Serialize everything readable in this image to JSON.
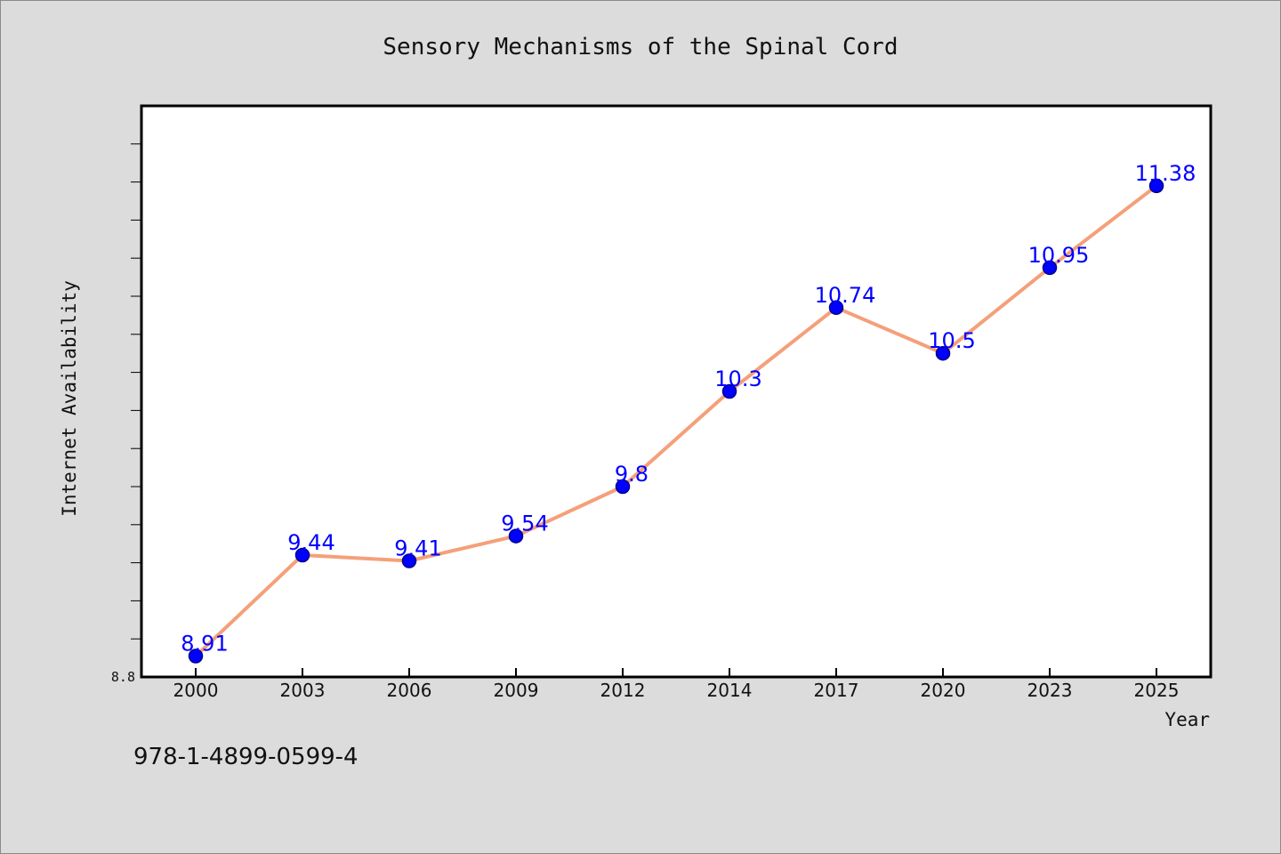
{
  "chart_data": {
    "type": "line",
    "title": "Sensory Mechanisms of the Spinal Cord",
    "xlabel": "Year",
    "ylabel": "Internet Availability",
    "categories": [
      "2000",
      "2003",
      "2006",
      "2009",
      "2012",
      "2014",
      "2017",
      "2020",
      "2023",
      "2025"
    ],
    "series": [
      {
        "values": [
          8.91,
          9.44,
          9.41,
          9.54,
          9.8,
          10.3,
          10.74,
          10.5,
          10.95,
          11.38
        ]
      }
    ],
    "data_labels": [
      "8.91",
      "9.44",
      "9.41",
      "9.54",
      "9.8",
      "10.3",
      "10.74",
      "10.5",
      "10.95",
      "11.38"
    ],
    "ylim": [
      8.8,
      11.8
    ],
    "y_tick_labels": [
      "8.8"
    ],
    "grid": false,
    "legend": "none",
    "colors": {
      "line": "#f4a07a",
      "marker": "#0000ff",
      "marker_edge": "#00008b",
      "label": "#0000ff",
      "background": "#dcdcdc",
      "plot_area": "#ffffff"
    }
  },
  "footer": {
    "isbn": "978-1-4899-0599-4"
  }
}
